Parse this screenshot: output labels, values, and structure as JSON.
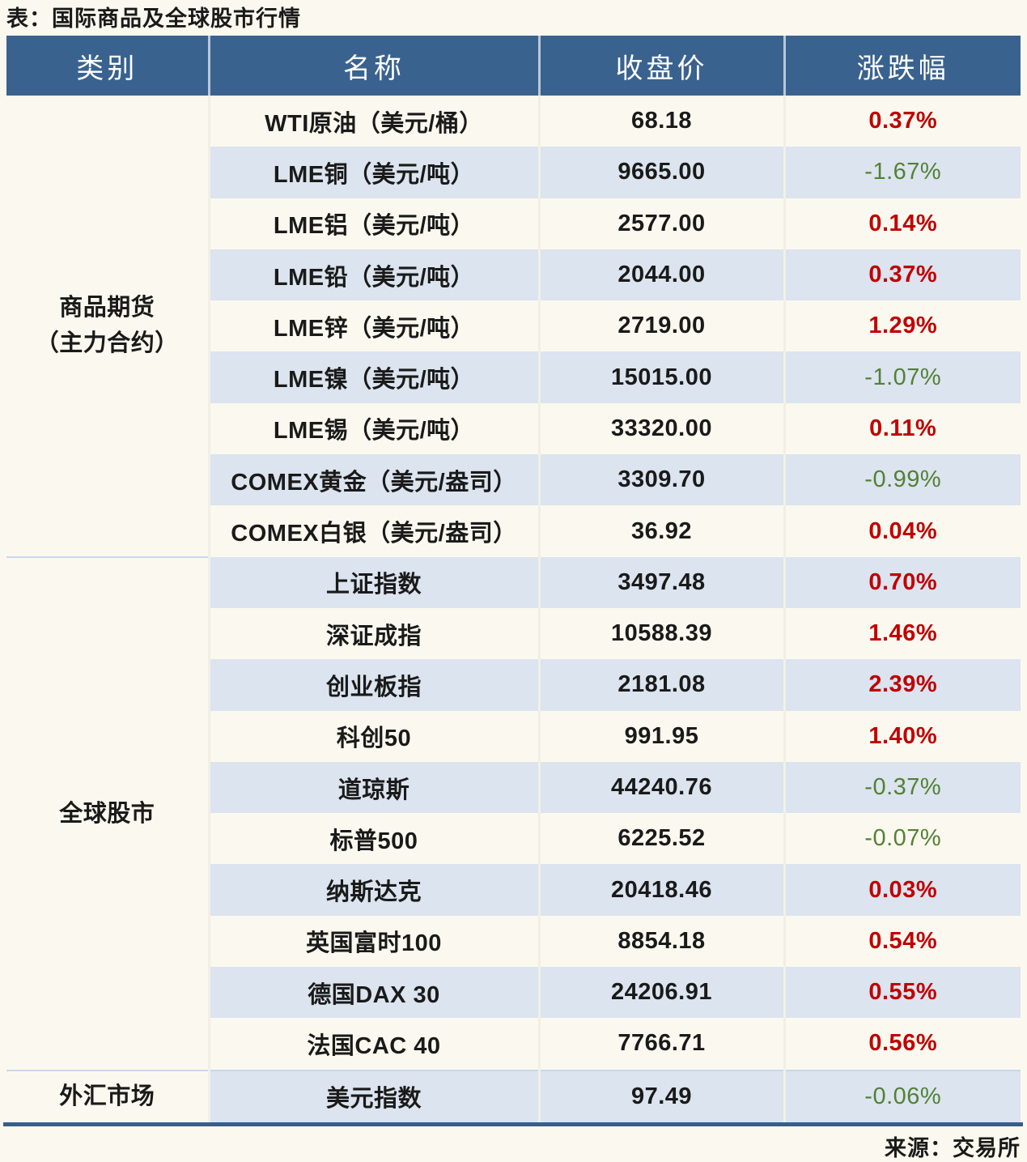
{
  "colors": {
    "header_bg": "#3A628F",
    "stripe_bg": "#DBE4EF",
    "page_bg": "#FBF9EF",
    "positive_red": "#C00000",
    "negative_green": "#538135",
    "bottom_rule": "#375E8C",
    "section_divider": "#C9D8EA"
  },
  "chart_data": {
    "type": "table",
    "title": "表：国际商品及全球股市行情",
    "source": "来源：交易所",
    "headers": {
      "category": "类别",
      "name": "名称",
      "close": "收盘价",
      "change": "涨跌幅"
    },
    "categories": [
      {
        "line1": "商品期货",
        "line2": "（主力合约）",
        "span": 9
      },
      {
        "line1": "全球股市",
        "line2": "",
        "span": 10
      },
      {
        "line1": "外汇市场",
        "line2": "",
        "span": 1
      }
    ],
    "rows": [
      {
        "name": "WTI原油（美元/桶）",
        "close": "68.18",
        "chg": "0.37%",
        "dir": "up"
      },
      {
        "name": "LME铜（美元/吨）",
        "close": "9665.00",
        "chg": "-1.67%",
        "dir": "down"
      },
      {
        "name": "LME铝（美元/吨）",
        "close": "2577.00",
        "chg": "0.14%",
        "dir": "up"
      },
      {
        "name": "LME铅（美元/吨）",
        "close": "2044.00",
        "chg": "0.37%",
        "dir": "up"
      },
      {
        "name": "LME锌（美元/吨）",
        "close": "2719.00",
        "chg": "1.29%",
        "dir": "up"
      },
      {
        "name": "LME镍（美元/吨）",
        "close": "15015.00",
        "chg": "-1.07%",
        "dir": "down"
      },
      {
        "name": "LME锡（美元/吨）",
        "close": "33320.00",
        "chg": "0.11%",
        "dir": "up"
      },
      {
        "name": "COMEX黄金（美元/盎司）",
        "close": "3309.70",
        "chg": "-0.99%",
        "dir": "down"
      },
      {
        "name": "COMEX白银（美元/盎司）",
        "close": "36.92",
        "chg": "0.04%",
        "dir": "up"
      },
      {
        "name": "上证指数",
        "close": "3497.48",
        "chg": "0.70%",
        "dir": "up"
      },
      {
        "name": "深证成指",
        "close": "10588.39",
        "chg": "1.46%",
        "dir": "up"
      },
      {
        "name": "创业板指",
        "close": "2181.08",
        "chg": "2.39%",
        "dir": "up"
      },
      {
        "name": "科创50",
        "close": "991.95",
        "chg": "1.40%",
        "dir": "up"
      },
      {
        "name": "道琼斯",
        "close": "44240.76",
        "chg": "-0.37%",
        "dir": "down"
      },
      {
        "name": "标普500",
        "close": "6225.52",
        "chg": "-0.07%",
        "dir": "down"
      },
      {
        "name": "纳斯达克",
        "close": "20418.46",
        "chg": "0.03%",
        "dir": "up"
      },
      {
        "name": "英国富时100",
        "close": "8854.18",
        "chg": "0.54%",
        "dir": "up"
      },
      {
        "name": "德国DAX 30",
        "close": "24206.91",
        "chg": "0.55%",
        "dir": "up"
      },
      {
        "name": "法国CAC 40",
        "close": "7766.71",
        "chg": "0.56%",
        "dir": "up"
      },
      {
        "name": "美元指数",
        "close": "97.49",
        "chg": "-0.06%",
        "dir": "down"
      }
    ]
  }
}
